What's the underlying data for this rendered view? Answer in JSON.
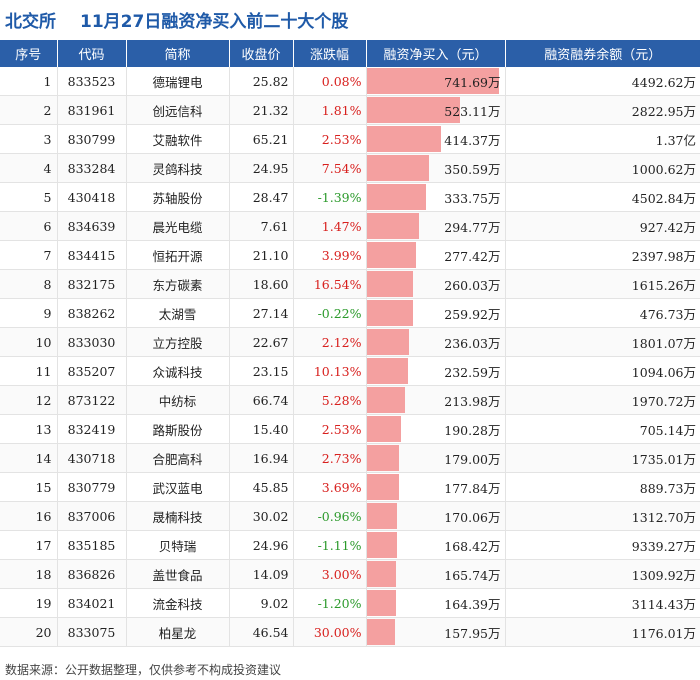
{
  "header": {
    "brand": "北交所",
    "title": "11月27日融资净买入前二十大个股"
  },
  "footer": {
    "source": "数据来源：公开数据整理，仅供参考不构成投资建议"
  },
  "colors": {
    "header_bg": "#2b5fa8",
    "up": "#d8201e",
    "down": "#2c9a2c",
    "bar": "#f4a0a0"
  },
  "chart_data": {
    "type": "table",
    "title": "11月27日融资净买入前二十大个股",
    "columns": [
      "序号",
      "代码",
      "简称",
      "收盘价",
      "涨跌幅",
      "融资净买入（元）",
      "融资融券余额（元）"
    ],
    "bar_column": "融资净买入（元）",
    "bar_max": 741.69,
    "rows": [
      {
        "idx": "1",
        "code": "833523",
        "name": "德瑞锂电",
        "close": "25.82",
        "change": "0.08%",
        "dir": "up",
        "net_buy": 741.69,
        "net_buy_text": "741.69万",
        "balance": "4492.62万"
      },
      {
        "idx": "2",
        "code": "831961",
        "name": "创远信科",
        "close": "21.32",
        "change": "1.81%",
        "dir": "up",
        "net_buy": 523.11,
        "net_buy_text": "523.11万",
        "balance": "2822.95万"
      },
      {
        "idx": "3",
        "code": "830799",
        "name": "艾融软件",
        "close": "65.21",
        "change": "2.53%",
        "dir": "up",
        "net_buy": 414.37,
        "net_buy_text": "414.37万",
        "balance": "1.37亿"
      },
      {
        "idx": "4",
        "code": "833284",
        "name": "灵鸽科技",
        "close": "24.95",
        "change": "7.54%",
        "dir": "up",
        "net_buy": 350.59,
        "net_buy_text": "350.59万",
        "balance": "1000.62万"
      },
      {
        "idx": "5",
        "code": "430418",
        "name": "苏轴股份",
        "close": "28.47",
        "change": "-1.39%",
        "dir": "down",
        "net_buy": 333.75,
        "net_buy_text": "333.75万",
        "balance": "4502.84万"
      },
      {
        "idx": "6",
        "code": "834639",
        "name": "晨光电缆",
        "close": "7.61",
        "change": "1.47%",
        "dir": "up",
        "net_buy": 294.77,
        "net_buy_text": "294.77万",
        "balance": "927.42万"
      },
      {
        "idx": "7",
        "code": "834415",
        "name": "恒拓开源",
        "close": "21.10",
        "change": "3.99%",
        "dir": "up",
        "net_buy": 277.42,
        "net_buy_text": "277.42万",
        "balance": "2397.98万"
      },
      {
        "idx": "8",
        "code": "832175",
        "name": "东方碳素",
        "close": "18.60",
        "change": "16.54%",
        "dir": "up",
        "net_buy": 260.03,
        "net_buy_text": "260.03万",
        "balance": "1615.26万"
      },
      {
        "idx": "9",
        "code": "838262",
        "name": "太湖雪",
        "close": "27.14",
        "change": "-0.22%",
        "dir": "down",
        "net_buy": 259.92,
        "net_buy_text": "259.92万",
        "balance": "476.73万"
      },
      {
        "idx": "10",
        "code": "833030",
        "name": "立方控股",
        "close": "22.67",
        "change": "2.12%",
        "dir": "up",
        "net_buy": 236.03,
        "net_buy_text": "236.03万",
        "balance": "1801.07万"
      },
      {
        "idx": "11",
        "code": "835207",
        "name": "众诚科技",
        "close": "23.15",
        "change": "10.13%",
        "dir": "up",
        "net_buy": 232.59,
        "net_buy_text": "232.59万",
        "balance": "1094.06万"
      },
      {
        "idx": "12",
        "code": "873122",
        "name": "中纺标",
        "close": "66.74",
        "change": "5.28%",
        "dir": "up",
        "net_buy": 213.98,
        "net_buy_text": "213.98万",
        "balance": "1970.72万"
      },
      {
        "idx": "13",
        "code": "832419",
        "name": "路斯股份",
        "close": "15.40",
        "change": "2.53%",
        "dir": "up",
        "net_buy": 190.28,
        "net_buy_text": "190.28万",
        "balance": "705.14万"
      },
      {
        "idx": "14",
        "code": "430718",
        "name": "合肥高科",
        "close": "16.94",
        "change": "2.73%",
        "dir": "up",
        "net_buy": 179.0,
        "net_buy_text": "179.00万",
        "balance": "1735.01万"
      },
      {
        "idx": "15",
        "code": "830779",
        "name": "武汉蓝电",
        "close": "45.85",
        "change": "3.69%",
        "dir": "up",
        "net_buy": 177.84,
        "net_buy_text": "177.84万",
        "balance": "889.73万"
      },
      {
        "idx": "16",
        "code": "837006",
        "name": "晟楠科技",
        "close": "30.02",
        "change": "-0.96%",
        "dir": "down",
        "net_buy": 170.06,
        "net_buy_text": "170.06万",
        "balance": "1312.70万"
      },
      {
        "idx": "17",
        "code": "835185",
        "name": "贝特瑞",
        "close": "24.96",
        "change": "-1.11%",
        "dir": "down",
        "net_buy": 168.42,
        "net_buy_text": "168.42万",
        "balance": "9339.27万"
      },
      {
        "idx": "18",
        "code": "836826",
        "name": "盖世食品",
        "close": "14.09",
        "change": "3.00%",
        "dir": "up",
        "net_buy": 165.74,
        "net_buy_text": "165.74万",
        "balance": "1309.92万"
      },
      {
        "idx": "19",
        "code": "834021",
        "name": "流金科技",
        "close": "9.02",
        "change": "-1.20%",
        "dir": "down",
        "net_buy": 164.39,
        "net_buy_text": "164.39万",
        "balance": "3114.43万"
      },
      {
        "idx": "20",
        "code": "833075",
        "name": "柏星龙",
        "close": "46.54",
        "change": "30.00%",
        "dir": "up",
        "net_buy": 157.95,
        "net_buy_text": "157.95万",
        "balance": "1176.01万"
      }
    ]
  }
}
